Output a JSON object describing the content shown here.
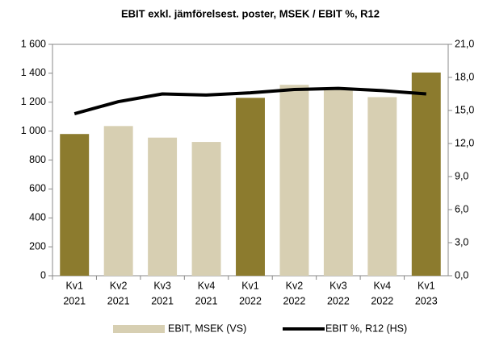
{
  "chart_data": {
    "type": "bar_line",
    "title": "EBIT exkl. jämförelsest. poster, MSEK / EBIT %, R12",
    "categories": [
      [
        "Kv1",
        "2021"
      ],
      [
        "Kv2",
        "2021"
      ],
      [
        "Kv3",
        "2021"
      ],
      [
        "Kv4",
        "2021"
      ],
      [
        "Kv1",
        "2022"
      ],
      [
        "Kv2",
        "2022"
      ],
      [
        "Kv3",
        "2022"
      ],
      [
        "Kv4",
        "2022"
      ],
      [
        "Kv1",
        "2023"
      ]
    ],
    "series": [
      {
        "name": "EBIT, MSEK (VS)",
        "type": "bar",
        "color": "#d7cfb2",
        "colors": [
          "#8c7b2e",
          "#d7cfb2",
          "#d7cfb2",
          "#d7cfb2",
          "#8c7b2e",
          "#d7cfb2",
          "#d7cfb2",
          "#d7cfb2",
          "#8c7b2e"
        ],
        "values": [
          980,
          1035,
          955,
          925,
          1230,
          1320,
          1290,
          1235,
          1405
        ]
      },
      {
        "name": "EBIT %, R12 (HS)",
        "type": "line",
        "axis": "y2",
        "color": "#000000",
        "values": [
          14.7,
          15.8,
          16.5,
          16.4,
          16.6,
          16.9,
          17.0,
          16.8,
          16.5
        ]
      }
    ],
    "ylim": [
      0,
      1600
    ],
    "yticks": [
      0,
      200,
      400,
      600,
      800,
      {
        "value": 1000,
        "label": "1 000"
      },
      {
        "value": 1200,
        "label": "1 200"
      },
      {
        "value": 1400,
        "label": "1 400"
      },
      {
        "value": 1600,
        "label": "1 600"
      }
    ],
    "y2lim": [
      0,
      21
    ],
    "y2ticks": [
      {
        "value": 0,
        "label": "0,0"
      },
      {
        "value": 3,
        "label": "3,0"
      },
      {
        "value": 6,
        "label": "6,0"
      },
      {
        "value": 9,
        "label": "9,0"
      },
      {
        "value": 12,
        "label": "12,0"
      },
      {
        "value": 15,
        "label": "15,0"
      },
      {
        "value": 18,
        "label": "18,0"
      },
      {
        "value": 21,
        "label": "21,0"
      }
    ],
    "grid": false
  }
}
